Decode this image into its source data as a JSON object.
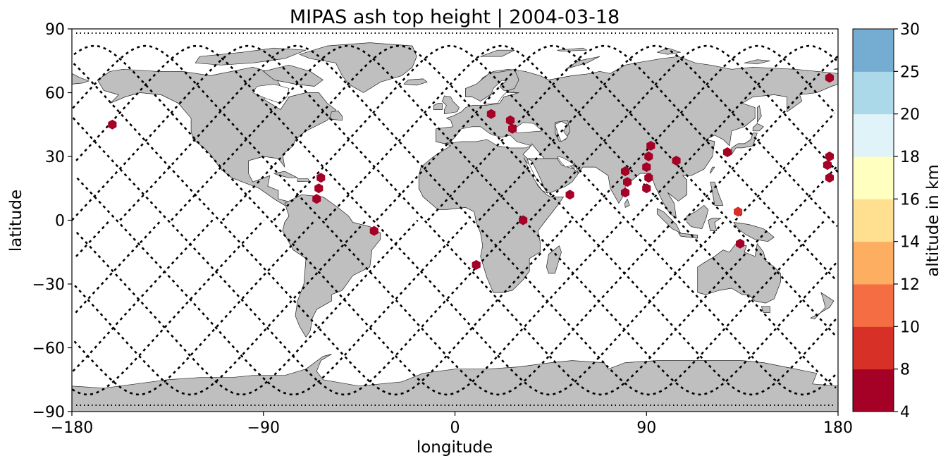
{
  "title": "MIPAS ash top height | 2004-03-18",
  "chart_data": {
    "type": "scatter",
    "title": "MIPAS ash top height | 2004-03-18",
    "xlabel": "longitude",
    "ylabel": "latitude",
    "xlim": [
      -180,
      180
    ],
    "ylim": [
      -90,
      90
    ],
    "xticks": [
      -180,
      -90,
      0,
      90,
      180
    ],
    "yticks": [
      -90,
      -60,
      -30,
      0,
      30,
      60,
      90
    ],
    "xtick_labels": [
      "−180",
      "−90",
      "0",
      "90",
      "180"
    ],
    "ytick_labels": [
      "−90",
      "−60",
      "−30",
      "0",
      "30",
      "60",
      "90"
    ],
    "colorbar": {
      "label": "altitude in km",
      "bounds": [
        4,
        8,
        10,
        12,
        14,
        16,
        18,
        20,
        25,
        30
      ],
      "tick_labels": [
        "4",
        "8",
        "10",
        "12",
        "14",
        "16",
        "18",
        "20",
        "25",
        "30"
      ],
      "colors": [
        "#a50026",
        "#d73027",
        "#f46d43",
        "#fdae61",
        "#fee090",
        "#ffffbf",
        "#e0f3f8",
        "#abd9e9",
        "#74add1",
        "#4575b4",
        "#313695"
      ]
    },
    "points": [
      {
        "lon": -161,
        "lat": 45,
        "alt": 6
      },
      {
        "lon": -63,
        "lat": 20,
        "alt": 6
      },
      {
        "lon": -64,
        "lat": 15,
        "alt": 6
      },
      {
        "lon": -65,
        "lat": 10,
        "alt": 6
      },
      {
        "lon": -38,
        "lat": -5,
        "alt": 6
      },
      {
        "lon": 17,
        "lat": 50,
        "alt": 6
      },
      {
        "lon": 26,
        "lat": 47,
        "alt": 6
      },
      {
        "lon": 27,
        "lat": 43,
        "alt": 6
      },
      {
        "lon": 32,
        "lat": 0,
        "alt": 6
      },
      {
        "lon": 10,
        "lat": -21,
        "alt": 6
      },
      {
        "lon": 54,
        "lat": 12,
        "alt": 6
      },
      {
        "lon": 80,
        "lat": 23,
        "alt": 6
      },
      {
        "lon": 81,
        "lat": 18,
        "alt": 6
      },
      {
        "lon": 80,
        "lat": 13,
        "alt": 6
      },
      {
        "lon": 92,
        "lat": 35,
        "alt": 6
      },
      {
        "lon": 91,
        "lat": 30,
        "alt": 6
      },
      {
        "lon": 90,
        "lat": 25,
        "alt": 6
      },
      {
        "lon": 91,
        "lat": 20,
        "alt": 6
      },
      {
        "lon": 90,
        "lat": 15,
        "alt": 6
      },
      {
        "lon": 104,
        "lat": 28,
        "alt": 6
      },
      {
        "lon": 128,
        "lat": 32,
        "alt": 6
      },
      {
        "lon": 133,
        "lat": 4,
        "alt": 9
      },
      {
        "lon": 134,
        "lat": -11,
        "alt": 6
      },
      {
        "lon": 176,
        "lat": 30,
        "alt": 6
      },
      {
        "lon": 175,
        "lat": 26,
        "alt": 6
      },
      {
        "lon": 176,
        "lat": 20,
        "alt": 6
      },
      {
        "lon": 176,
        "lat": 67,
        "alt": 6
      }
    ]
  },
  "style": {
    "land": "#bfbfbf",
    "coast": "#222222",
    "track": "#000000",
    "frame": "#000000"
  }
}
